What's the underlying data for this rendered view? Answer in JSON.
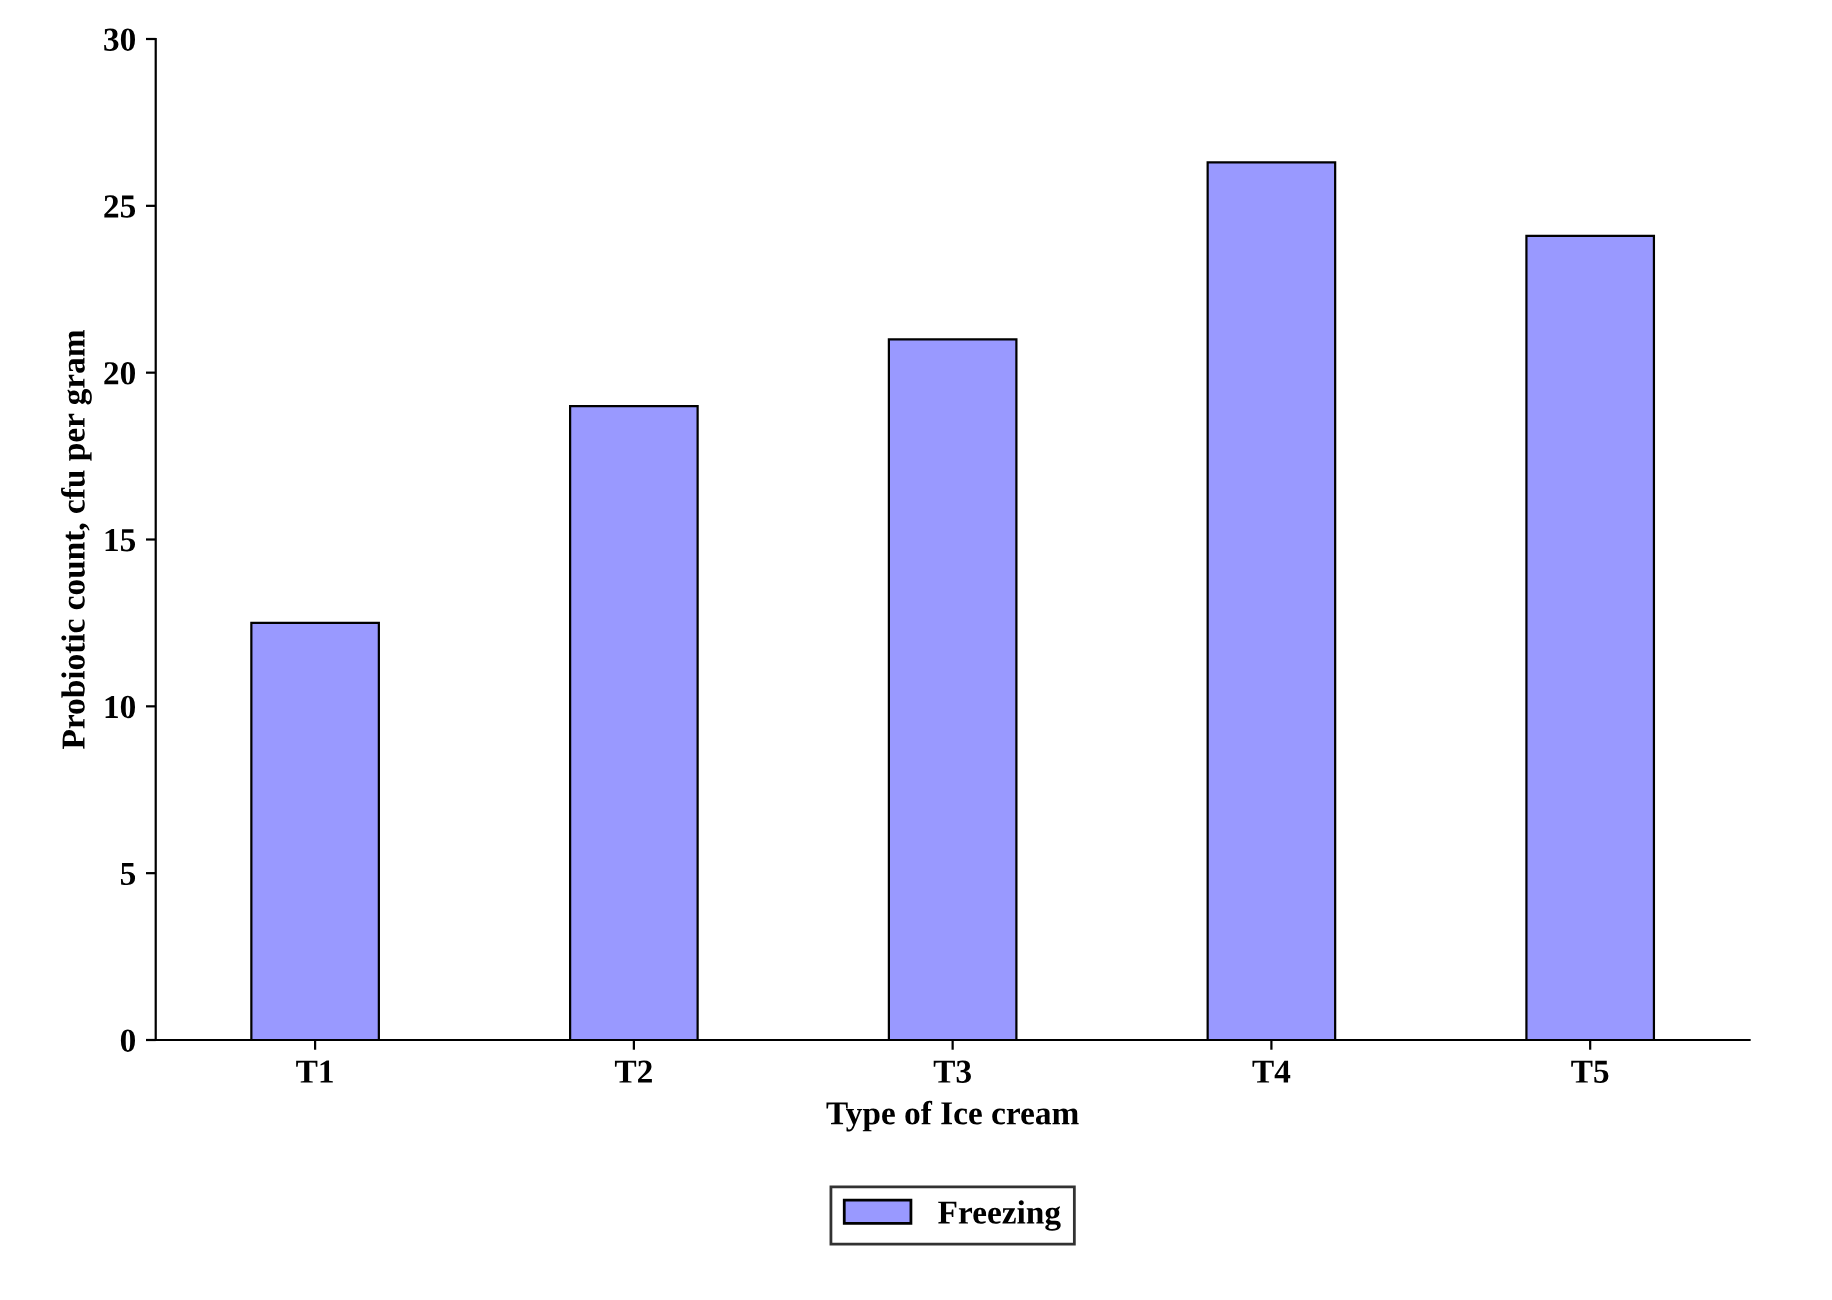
{
  "chart_data": {
    "type": "bar",
    "xlabel": "Type of Ice cream",
    "ylabel": "Probiotic count, cfu per gram",
    "categories": [
      "T1",
      "T2",
      "T3",
      "T4",
      "T5"
    ],
    "series": [
      {
        "name": "Freezing",
        "color": "#9999ff",
        "values": [
          12.5,
          19,
          21,
          26.3,
          24.1
        ]
      }
    ],
    "ylim": [
      0,
      30
    ],
    "yticks": [
      0,
      5,
      10,
      15,
      20,
      25,
      30
    ],
    "grid": false,
    "legend": "bottom"
  }
}
